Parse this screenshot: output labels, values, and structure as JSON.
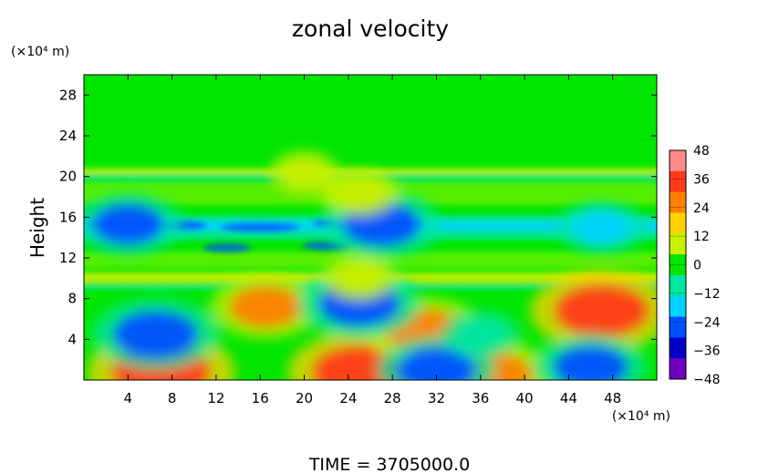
{
  "chart_data": {
    "type": "heatmap",
    "title": "zonal velocity",
    "ylabel": "Height",
    "y_unit": "(×10⁴ m)",
    "x_unit": "(×10⁴ m)",
    "footer": "TIME = 3705000.0",
    "xlim": [
      0,
      52
    ],
    "ylim": [
      0,
      30
    ],
    "x_ticks": [
      "4",
      "8",
      "12",
      "16",
      "20",
      "24",
      "28",
      "32",
      "36",
      "40",
      "44",
      "48"
    ],
    "x_tick_values": [
      4,
      8,
      12,
      16,
      20,
      24,
      28,
      32,
      36,
      40,
      44,
      48
    ],
    "y_ticks": [
      "4",
      "8",
      "12",
      "16",
      "20",
      "24",
      "28"
    ],
    "y_tick_values": [
      4,
      8,
      12,
      16,
      20,
      24,
      28
    ],
    "colorbar": {
      "range": [
        -48,
        48
      ],
      "labels": [
        "48",
        "36",
        "24",
        "12",
        "0",
        "−12",
        "−24",
        "−36",
        "−48"
      ],
      "label_values": [
        48,
        36,
        24,
        12,
        0,
        -12,
        -24,
        -36,
        -48
      ],
      "colors": [
        "#ff8a8a",
        "#ff3a1a",
        "#ff8000",
        "#ffd200",
        "#c8f000",
        "#00e600",
        "#00e6a0",
        "#00d2ff",
        "#0050ff",
        "#0000c8",
        "#7000c0"
      ]
    },
    "features": [
      {
        "x": 7,
        "y": 0.8,
        "value": 40
      },
      {
        "x": 25,
        "y": 0.8,
        "value": 38
      },
      {
        "x": 37,
        "y": 0.5,
        "value": 30
      },
      {
        "x": 16.5,
        "y": 7.2,
        "value": 25
      },
      {
        "x": 31,
        "y": 4.8,
        "value": 28
      },
      {
        "x": 47,
        "y": 6.8,
        "value": 38
      },
      {
        "x": 6.5,
        "y": 4.5,
        "value": -32
      },
      {
        "x": 25,
        "y": 7.5,
        "value": -30
      },
      {
        "x": 32,
        "y": 1.0,
        "value": -28
      },
      {
        "x": 46,
        "y": 1.3,
        "value": -26
      },
      {
        "x": 36,
        "y": 4.5,
        "value": -12
      },
      {
        "x": 27,
        "y": 15.3,
        "value": -28
      },
      {
        "x": 4,
        "y": 15.3,
        "value": -24
      },
      {
        "x": 47,
        "y": 15.0,
        "value": -16
      },
      {
        "x": 25,
        "y": 18.4,
        "value": 12
      },
      {
        "x": 25,
        "y": 10.0,
        "value": 10
      },
      {
        "x": 20,
        "y": 20.4,
        "value": 8
      }
    ]
  }
}
